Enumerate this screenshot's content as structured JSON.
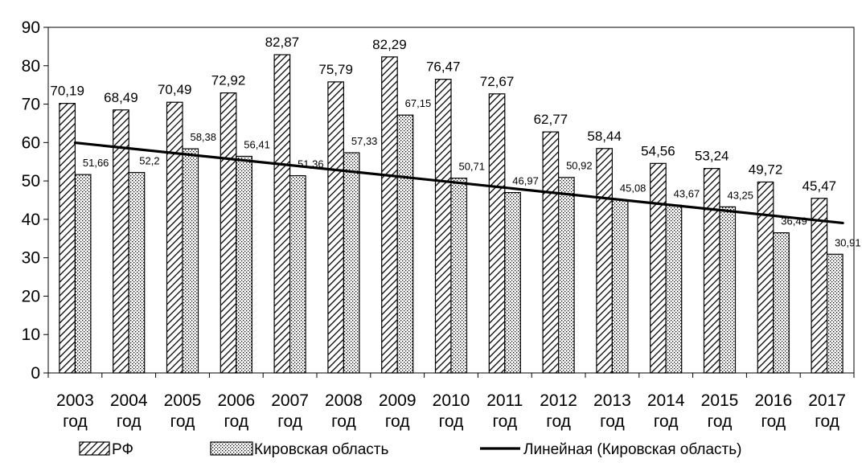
{
  "chart_data": {
    "type": "bar",
    "categories": [
      "2003 год",
      "2004 год",
      "2005 год",
      "2006 год",
      "2007 год",
      "2008 год",
      "2009 год",
      "2010 год",
      "2011 год",
      "2012 год",
      "2013 год",
      "2014 год",
      "2015 год",
      "2016 год",
      "2017 год"
    ],
    "category_lines": [
      [
        "2003",
        "год"
      ],
      [
        "2004",
        "год"
      ],
      [
        "2005",
        "год"
      ],
      [
        "2006",
        "год"
      ],
      [
        "2007",
        "год"
      ],
      [
        "2008",
        "год"
      ],
      [
        "2009",
        "год"
      ],
      [
        "2010",
        "год"
      ],
      [
        "2011",
        "год"
      ],
      [
        "2012",
        "год"
      ],
      [
        "2013",
        "год"
      ],
      [
        "2014",
        "год"
      ],
      [
        "2015",
        "год"
      ],
      [
        "2016",
        "год"
      ],
      [
        "2017",
        "год"
      ]
    ],
    "series": [
      {
        "name": "РФ",
        "values": [
          70.19,
          68.49,
          70.49,
          72.92,
          82.87,
          75.79,
          82.29,
          76.47,
          72.67,
          62.77,
          58.44,
          54.56,
          53.24,
          49.72,
          45.47
        ],
        "labels": [
          "70,19",
          "68,49",
          "70,49",
          "72,92",
          "82,87",
          "75,79",
          "82,29",
          "76,47",
          "72,67",
          "62,77",
          "58,44",
          "54,56",
          "53,24",
          "49,72",
          "45,47"
        ],
        "fill": "diagonal-hatch"
      },
      {
        "name": "Кировская область",
        "values": [
          51.66,
          52.2,
          58.38,
          56.41,
          51.36,
          57.33,
          67.15,
          50.71,
          46.97,
          50.92,
          45.08,
          43.67,
          43.25,
          36.49,
          30.91
        ],
        "labels": [
          "51,66",
          "52,2",
          "58,38",
          "56,41",
          "51,36",
          "57,33",
          "67,15",
          "50,71",
          "46,97",
          "50,92",
          "45,08",
          "43,67",
          "43,25",
          "36,49",
          "30,91"
        ],
        "fill": "dotted"
      }
    ],
    "trendline": {
      "name": "Линейная (Кировская область)",
      "of_series": "Кировская область",
      "type": "linear"
    },
    "ylim": [
      0,
      90
    ],
    "yticks": [
      "0",
      "10",
      "20",
      "30",
      "40",
      "50",
      "60",
      "70",
      "80",
      "90"
    ],
    "grid": false,
    "legend": "bottom",
    "title": "",
    "xlabel": "",
    "ylabel": "",
    "colors": {
      "bar_stroke": "#000000",
      "trend": "#000000",
      "background": "#ffffff"
    }
  }
}
